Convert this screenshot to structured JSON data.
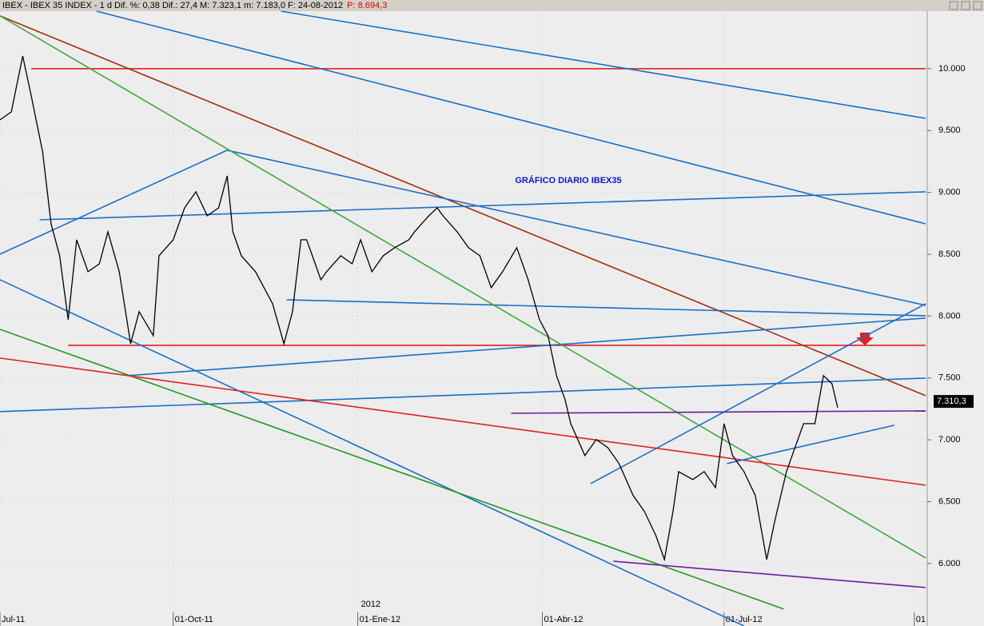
{
  "chart_data": {
    "type": "line",
    "header": {
      "text": "IBEX - IBEX 35 INDEX - 1 d  Dif. %: 0,38  Dif.: 27,4  M: 7.323,1  m: 7.183,0  F: 24-08-2012",
      "p_label": "P: 8.694,3"
    },
    "title": "GRÁFICO DIARIO IBEX35",
    "year_marker": "2012",
    "xlim": [
      0,
      326
    ],
    "ylim": [
      5495,
      10465
    ],
    "xticks": [
      {
        "value": 0,
        "label": "Jul-11"
      },
      {
        "value": 61,
        "label": "01-Oct-11"
      },
      {
        "value": 126,
        "label": "01-Ene-12"
      },
      {
        "value": 191,
        "label": "01-Abr-12"
      },
      {
        "value": 255,
        "label": "01-Jul-12"
      },
      {
        "value": 322,
        "label": "01"
      }
    ],
    "yticks": [
      {
        "value": 6000,
        "label": "6.000"
      },
      {
        "value": 6500,
        "label": "6.500"
      },
      {
        "value": 7000,
        "label": "7.000"
      },
      {
        "value": 7500,
        "label": "7.500"
      },
      {
        "value": 8000,
        "label": "8.000"
      },
      {
        "value": 8500,
        "label": "8.500"
      },
      {
        "value": 9000,
        "label": "9.000"
      },
      {
        "value": 9500,
        "label": "9.500"
      },
      {
        "value": 10000,
        "label": "10.000"
      }
    ],
    "last": {
      "value": 7310.3,
      "label": "7.310,3"
    },
    "series": [
      {
        "color": "#000000",
        "x": [
          0,
          4,
          8,
          11,
          15,
          18,
          21,
          24,
          27,
          31,
          35,
          38,
          42,
          46,
          49,
          54,
          56,
          61,
          65,
          69,
          73,
          77,
          80,
          82,
          85,
          90,
          96,
          100,
          103,
          106,
          108,
          113,
          115,
          120,
          124,
          127,
          131,
          135,
          139,
          144,
          146,
          151,
          154,
          156,
          161,
          165,
          169,
          173,
          177,
          182,
          186,
          190,
          193,
          196,
          199,
          201,
          206,
          210,
          214,
          218,
          223,
          227,
          231,
          234,
          237,
          239,
          244,
          248,
          252,
          255,
          258,
          262,
          266,
          270,
          273,
          277,
          280,
          283,
          287,
          290,
          293,
          295
        ],
        "values": [
          9587,
          9651,
          10103,
          9780,
          9328,
          8746,
          8488,
          7971,
          8617,
          8359,
          8423,
          8682,
          8359,
          7777,
          8036,
          7842,
          8488,
          8617,
          8875,
          9005,
          8811,
          8875,
          9134,
          8682,
          8488,
          8359,
          8100,
          7777,
          8036,
          8617,
          8617,
          8294,
          8359,
          8488,
          8423,
          8617,
          8359,
          8488,
          8553,
          8617,
          8682,
          8811,
          8875,
          8811,
          8682,
          8553,
          8488,
          8230,
          8359,
          8553,
          8294,
          7971,
          7842,
          7519,
          7325,
          7131,
          6873,
          7002,
          6938,
          6808,
          6550,
          6420,
          6226,
          6032,
          6420,
          6743,
          6679,
          6743,
          6614,
          7131,
          6873,
          6743,
          6550,
          6032,
          6356,
          6743,
          6938,
          7131,
          7131,
          7519,
          7454,
          7260
        ]
      }
    ],
    "trendlines": [
      {
        "color": "#e02020",
        "x": [
          11,
          326
        ],
        "y": [
          10000,
          10000
        ]
      },
      {
        "color": "#e02020",
        "x": [
          24,
          326
        ],
        "y": [
          7764,
          7764
        ]
      },
      {
        "color": "#a0300a",
        "x": [
          0,
          326
        ],
        "y": [
          10427,
          7357
        ]
      },
      {
        "color": "#1a6fc4",
        "x": [
          34,
          326
        ],
        "y": [
          10465,
          8746
        ]
      },
      {
        "color": "#1a6fc4",
        "x": [
          99,
          326
        ],
        "y": [
          10465,
          9599
        ]
      },
      {
        "color": "#1a6fc4",
        "x": [
          14,
          326
        ],
        "y": [
          8779,
          9005
        ]
      },
      {
        "color": "#1a6fc4",
        "x": [
          0,
          80
        ],
        "y": [
          8501,
          9341
        ]
      },
      {
        "color": "#1a6fc4",
        "x": [
          80,
          326
        ],
        "y": [
          9341,
          8087
        ]
      },
      {
        "color": "#1a6fc4",
        "x": [
          0,
          326
        ],
        "y": [
          7228,
          7499
        ]
      },
      {
        "color": "#1a6fc4",
        "x": [
          45,
          326
        ],
        "y": [
          7519,
          7984
        ]
      },
      {
        "color": "#1a6fc4",
        "x": [
          101,
          326
        ],
        "y": [
          8132,
          8003
        ]
      },
      {
        "color": "#1a6fc4",
        "x": [
          208,
          326
        ],
        "y": [
          6646,
          8100
        ]
      },
      {
        "color": "#1a6fc4",
        "x": [
          0,
          262
        ],
        "y": [
          8294,
          5496
        ]
      },
      {
        "color": "#1f9a1f",
        "x": [
          0,
          276
        ],
        "y": [
          7893,
          5632
        ]
      },
      {
        "color": "#3fa83f",
        "x": [
          0,
          326
        ],
        "y": [
          10427,
          6045
        ]
      },
      {
        "color": "#e02020",
        "x": [
          0,
          326
        ],
        "y": [
          7661,
          6633
        ]
      },
      {
        "color": "#6a1f9a",
        "x": [
          180,
          326
        ],
        "y": [
          7215,
          7234
        ]
      },
      {
        "color": "#6a1f9a",
        "x": [
          216,
          326
        ],
        "y": [
          6019,
          5806
        ]
      },
      {
        "color": "#1a6fc4",
        "x": [
          256,
          315
        ],
        "y": [
          6808,
          7118
        ]
      }
    ]
  }
}
